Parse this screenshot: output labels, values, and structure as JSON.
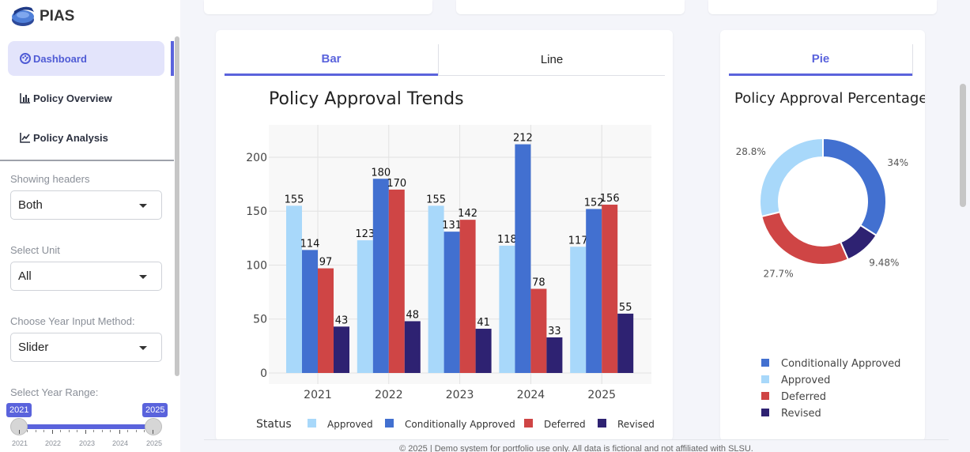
{
  "app": {
    "title": "PIAS"
  },
  "nav": {
    "dashboard": "Dashboard",
    "overview": "Policy Overview",
    "analysis": "Policy Analysis"
  },
  "controls": {
    "headers": {
      "label": "Showing headers",
      "value": "Both"
    },
    "unit": {
      "label": "Select Unit",
      "value": "All"
    },
    "method": {
      "label": "Choose Year Input Method:",
      "value": "Slider"
    },
    "range": {
      "label": "Select Year Range:",
      "from": "2021",
      "to": "2025",
      "ticks": [
        "2021",
        "2022",
        "2023",
        "2024",
        "2025"
      ]
    }
  },
  "bar_panel": {
    "tabs": [
      "Bar",
      "Line"
    ],
    "active_tab": "Bar"
  },
  "pie_panel": {
    "tabs": [
      "Pie"
    ],
    "active_tab": "Pie"
  },
  "colors": {
    "accent": "#5a63dc",
    "approved": "#a8d8fa",
    "conditionally_approved": "#4270d0",
    "deferred": "#cf4545",
    "revised": "#2e2272"
  },
  "footer": "© 2025 | Demo system for portfolio use only. All data is fictional and not affiliated with SLSU.",
  "chart_data": [
    {
      "type": "bar",
      "title": "Policy Approval Trends",
      "categories": [
        "2021",
        "2022",
        "2023",
        "2024",
        "2025"
      ],
      "series": [
        {
          "name": "Approved",
          "values": [
            155,
            123,
            155,
            118,
            117
          ]
        },
        {
          "name": "Conditionally Approved",
          "values": [
            114,
            180,
            131,
            212,
            152
          ]
        },
        {
          "name": "Deferred",
          "values": [
            97,
            170,
            142,
            78,
            156
          ]
        },
        {
          "name": "Revised",
          "values": [
            43,
            48,
            41,
            33,
            55
          ]
        }
      ],
      "ylim": [
        0,
        230
      ],
      "yticks": [
        0,
        50,
        100,
        150,
        200
      ],
      "legend_title": "Status",
      "legend": "bottom",
      "grid": true
    },
    {
      "type": "pie",
      "title": "Policy Approval Percentage",
      "donut": true,
      "slices": [
        {
          "name": "Conditionally Approved",
          "value": 34,
          "label": "34%"
        },
        {
          "name": "Revised",
          "value": 9.48,
          "label": "9.48%"
        },
        {
          "name": "Deferred",
          "value": 27.7,
          "label": "27.7%"
        },
        {
          "name": "Approved",
          "value": 28.8,
          "label": "28.8%"
        }
      ],
      "legend_order": [
        "Conditionally Approved",
        "Approved",
        "Deferred",
        "Revised"
      ],
      "legend": "bottom"
    }
  ]
}
